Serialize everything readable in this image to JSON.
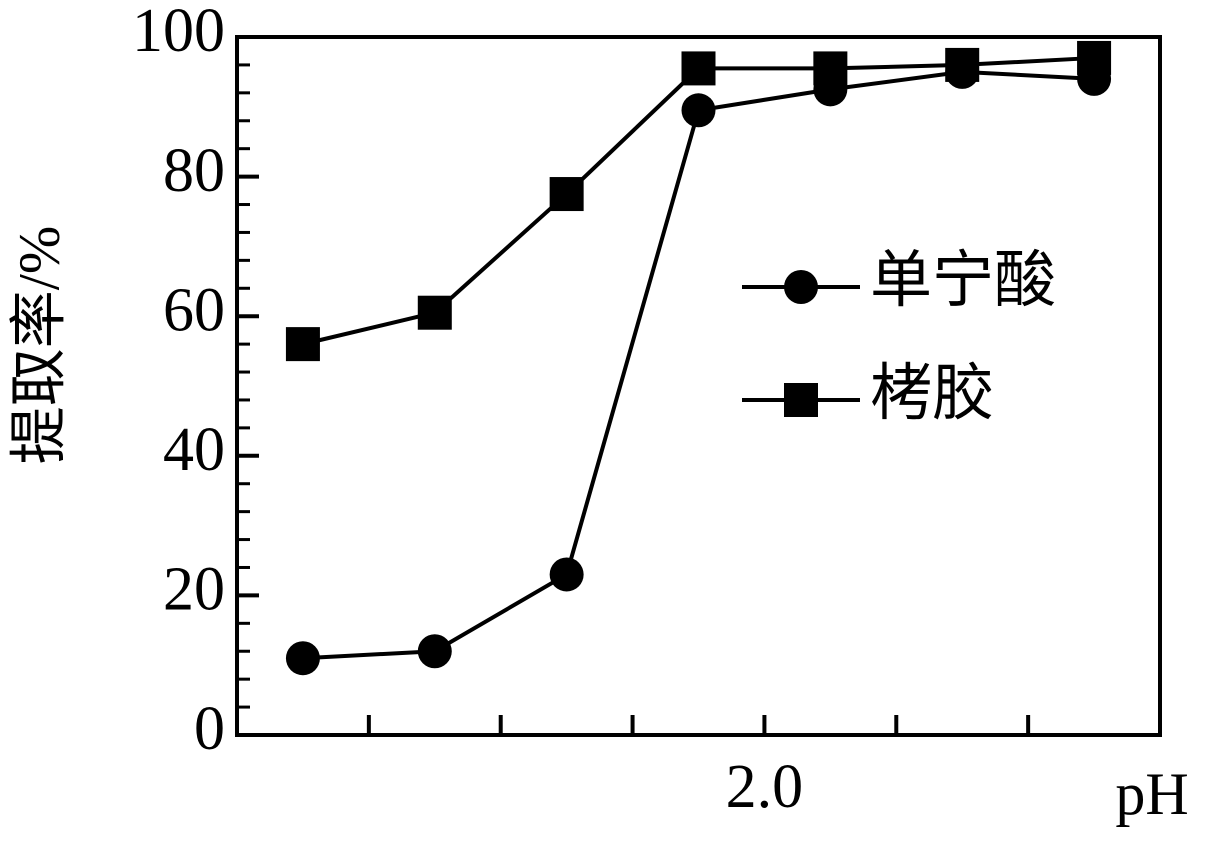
{
  "chart_data": {
    "type": "line",
    "xlabel": "pH",
    "ylabel": "提取率/%",
    "x": [
      0.6,
      1.0,
      1.4,
      1.8,
      2.2,
      2.6,
      3.0
    ],
    "series": [
      {
        "name": "单宁酸",
        "color": "#000000",
        "marker": "circle",
        "values": [
          11,
          12,
          23,
          89.5,
          92.5,
          95,
          94
        ]
      },
      {
        "name": "栲胶",
        "color": "#000000",
        "marker": "square",
        "values": [
          56,
          60.5,
          77.5,
          95.5,
          95.5,
          96,
          97
        ]
      }
    ],
    "xlim": [
      0.4,
      3.2
    ],
    "xticks": [
      {
        "value": 2,
        "label": "2.0"
      }
    ],
    "xminor_ticks": [
      0.8,
      1.2,
      1.6,
      2.4,
      2.8
    ],
    "ylim": [
      0,
      100
    ],
    "yticks": [
      0,
      20,
      40,
      60,
      80,
      100
    ],
    "yminor_ticks": [
      4,
      8,
      12,
      16,
      24,
      28,
      32,
      36,
      44,
      48,
      52,
      56,
      64,
      68,
      72,
      76,
      84,
      88,
      92,
      96
    ],
    "grid": false,
    "legend_position": "center-right"
  }
}
